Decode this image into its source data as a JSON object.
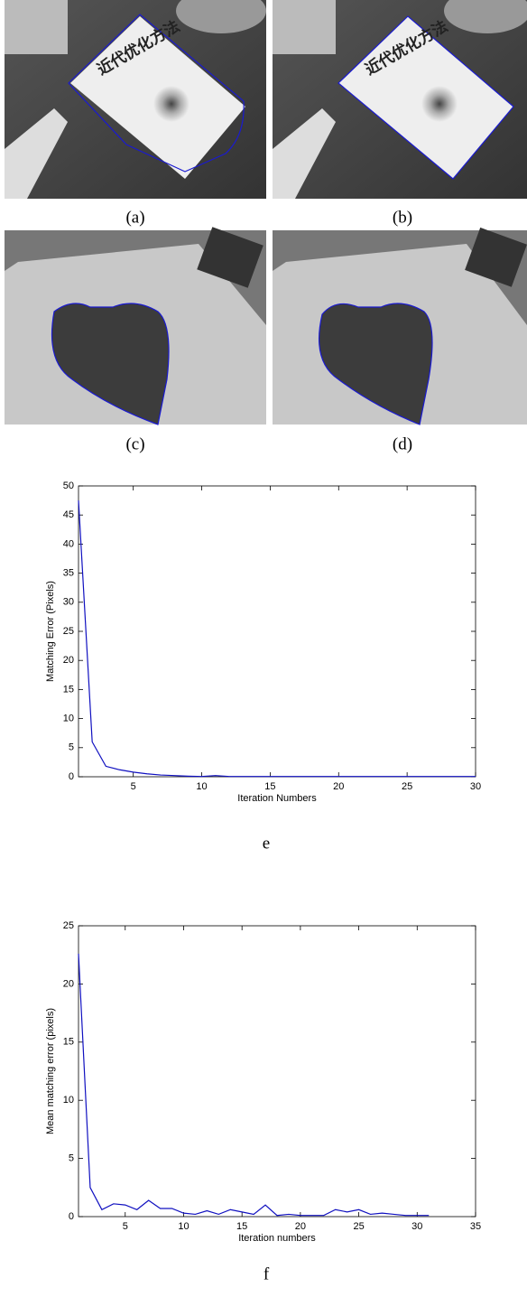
{
  "panels": [
    {
      "label": "(a)"
    },
    {
      "label": "(b)"
    },
    {
      "label": "(c)"
    },
    {
      "label": "(d)"
    }
  ],
  "book_title": "近代优化方法",
  "chart_data": [
    {
      "type": "line",
      "caption": "e",
      "xlabel": "Iteration Numbers",
      "ylabel": "Matching Error (Pixels)",
      "xlim": [
        1,
        30
      ],
      "ylim": [
        0,
        50
      ],
      "xticks": [
        5,
        10,
        15,
        20,
        25,
        30
      ],
      "yticks": [
        0,
        5,
        10,
        15,
        20,
        25,
        30,
        35,
        40,
        45,
        50
      ],
      "series": [
        {
          "color": "#1010c0",
          "x": [
            1,
            2,
            3,
            4,
            5,
            6,
            7,
            8,
            9,
            10,
            11,
            12,
            13,
            14,
            15,
            16,
            17,
            18,
            19,
            20,
            21,
            22,
            23,
            24,
            25,
            26,
            27,
            28,
            29,
            30
          ],
          "values": [
            47.5,
            6,
            1.8,
            1.2,
            0.8,
            0.5,
            0.3,
            0.2,
            0.1,
            0.05,
            0.2,
            0.05,
            0.05,
            0.05,
            0.05,
            0.05,
            0.05,
            0.05,
            0.05,
            0.05,
            0.05,
            0.05,
            0.05,
            0.05,
            0.05,
            0.05,
            0.05,
            0.05,
            0.05,
            0.05
          ]
        }
      ]
    },
    {
      "type": "line",
      "caption": "f",
      "xlabel": "Iteration numbers",
      "ylabel": "Mean matching error (pixels)",
      "xlim": [
        1,
        35
      ],
      "ylim": [
        0,
        25
      ],
      "xticks": [
        5,
        10,
        15,
        20,
        25,
        30,
        35
      ],
      "yticks": [
        0,
        5,
        10,
        15,
        20,
        25
      ],
      "series": [
        {
          "color": "#1010c0",
          "x": [
            1,
            2,
            3,
            4,
            5,
            6,
            7,
            8,
            9,
            10,
            11,
            12,
            13,
            14,
            15,
            16,
            17,
            18,
            19,
            20,
            21,
            22,
            23,
            24,
            25,
            26,
            27,
            28,
            29,
            30,
            31
          ],
          "values": [
            22.6,
            2.5,
            0.6,
            1.1,
            1.0,
            0.6,
            1.4,
            0.7,
            0.7,
            0.3,
            0.2,
            0.5,
            0.2,
            0.6,
            0.4,
            0.2,
            1.0,
            0.1,
            0.2,
            0.1,
            0.1,
            0.1,
            0.6,
            0.4,
            0.6,
            0.2,
            0.3,
            0.2,
            0.1,
            0.1,
            0.1
          ]
        }
      ]
    }
  ]
}
